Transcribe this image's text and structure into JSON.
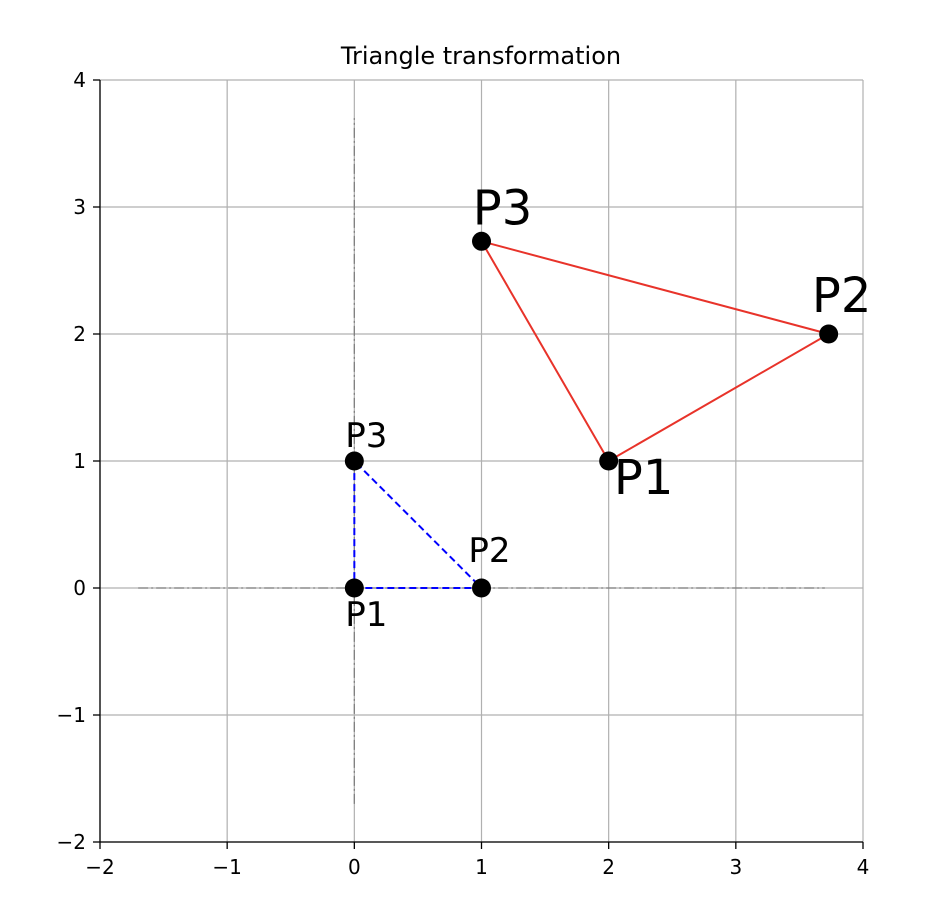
{
  "chart_data": {
    "type": "scatter",
    "title": "Triangle transformation",
    "xlabel": "",
    "ylabel": "",
    "xlim": [
      -2,
      4
    ],
    "ylim": [
      -2,
      4
    ],
    "xticks": [
      -2,
      -1,
      0,
      1,
      2,
      3,
      4
    ],
    "yticks": [
      -2,
      -1,
      0,
      1,
      2,
      3,
      4
    ],
    "xtick_labels": [
      "−2",
      "−1",
      "0",
      "1",
      "2",
      "3",
      "4"
    ],
    "ytick_labels": [
      "−2",
      "−1",
      "0",
      "1",
      "2",
      "3",
      "4"
    ],
    "grid": true,
    "axis_lines": {
      "x_range": [
        -1.7,
        3.7
      ],
      "y_range": [
        -1.7,
        3.7
      ],
      "color": "#808080",
      "style": "dashdot"
    },
    "series": [
      {
        "color": "#0000ff",
        "linestyle": "dashed",
        "points": [
          {
            "label": "P1",
            "x": 0,
            "y": 0
          },
          {
            "label": "P2",
            "x": 1,
            "y": 0
          },
          {
            "label": "P3",
            "x": 0,
            "y": 1
          }
        ]
      },
      {
        "color": "#e8332a",
        "linestyle": "solid",
        "points": [
          {
            "label": "P1",
            "x": 2,
            "y": 1
          },
          {
            "label": "P2",
            "x": 3.73,
            "y": 2
          },
          {
            "label": "P3",
            "x": 1,
            "y": 2.73
          }
        ]
      }
    ]
  }
}
